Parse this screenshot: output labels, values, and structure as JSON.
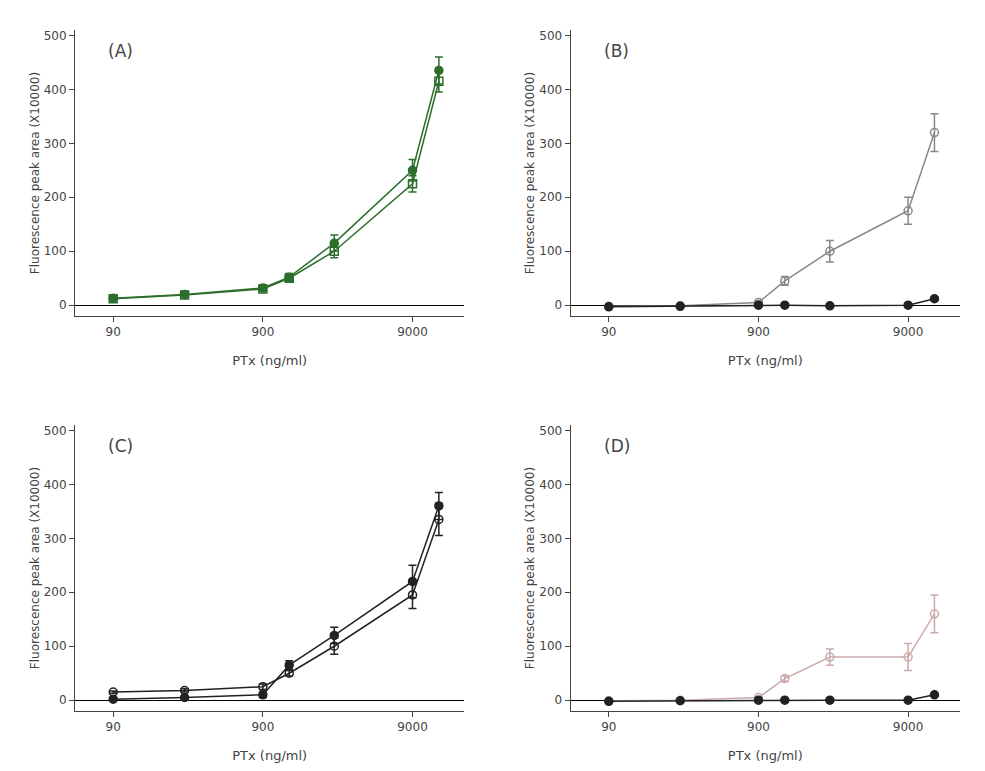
{
  "chart_data": [
    {
      "type": "line",
      "annotations": [
        "(A)"
      ],
      "xlabel": "PTx (ng/ml)",
      "ylabel": "Fluorescence peak area (X10000)",
      "x": [
        90,
        270,
        900,
        1350,
        2700,
        9000,
        13500
      ],
      "log": "x",
      "xlim": [
        50,
        20000
      ],
      "xticks": [
        90,
        900,
        9000
      ],
      "ylim": [
        -20,
        510
      ],
      "yticks": [
        0,
        100,
        200,
        300,
        400,
        500
      ],
      "grid": false,
      "series": [
        {
          "color": "#2d6e2d",
          "marker": "circle",
          "values": [
            13,
            20,
            32,
            52,
            115,
            250,
            435
          ],
          "yerr": [
            3,
            3,
            5,
            7,
            15,
            20,
            25
          ]
        },
        {
          "color": "#2d6e2d",
          "marker": "square-open",
          "values": [
            12,
            19,
            30,
            50,
            100,
            225,
            415
          ],
          "yerr": [
            2,
            3,
            4,
            6,
            12,
            15,
            20
          ]
        }
      ]
    },
    {
      "type": "line",
      "annotations": [
        "(B)"
      ],
      "xlabel": "PTx (ng/ml)",
      "ylabel": "Fluorescence peak area (X10000)",
      "x": [
        90,
        270,
        900,
        1350,
        2700,
        9000,
        13500
      ],
      "log": "x",
      "xlim": [
        50,
        20000
      ],
      "xticks": [
        90,
        900,
        9000
      ],
      "ylim": [
        -20,
        510
      ],
      "yticks": [
        0,
        100,
        200,
        300,
        400,
        500
      ],
      "grid": false,
      "series": [
        {
          "color": "#888888",
          "marker": "circle-open",
          "values": [
            -2,
            -1,
            5,
            45,
            100,
            175,
            320
          ],
          "yerr": [
            1,
            1,
            3,
            8,
            20,
            25,
            35
          ]
        },
        {
          "color": "#222222",
          "marker": "circle",
          "values": [
            -3,
            -2,
            0,
            0,
            -1,
            0,
            12
          ],
          "yerr": [
            1,
            1,
            1,
            1,
            1,
            1,
            3
          ]
        }
      ]
    },
    {
      "type": "line",
      "annotations": [
        "(C)"
      ],
      "xlabel": "PTx (ng/ml)",
      "ylabel": "Fluorescence peak area (X10000)",
      "x": [
        90,
        270,
        900,
        1350,
        2700,
        9000,
        13500
      ],
      "log": "x",
      "xlim": [
        50,
        20000
      ],
      "xticks": [
        90,
        900,
        9000
      ],
      "ylim": [
        -20,
        510
      ],
      "yticks": [
        0,
        100,
        200,
        300,
        400,
        500
      ],
      "grid": false,
      "series": [
        {
          "color": "#222222",
          "marker": "circle",
          "values": [
            2,
            5,
            10,
            65,
            120,
            220,
            360
          ],
          "yerr": [
            2,
            2,
            5,
            8,
            15,
            30,
            25
          ]
        },
        {
          "color": "#222222",
          "marker": "circle-open",
          "values": [
            15,
            18,
            25,
            50,
            100,
            195,
            335
          ],
          "yerr": [
            2,
            3,
            5,
            5,
            15,
            25,
            30
          ]
        }
      ]
    },
    {
      "type": "line",
      "annotations": [
        "(D)"
      ],
      "xlabel": "PTx (ng/ml)",
      "ylabel": "Fluorescence peak area (X10000)",
      "x": [
        90,
        270,
        900,
        1350,
        2700,
        9000,
        13500
      ],
      "log": "x",
      "xlim": [
        50,
        20000
      ],
      "xticks": [
        90,
        900,
        9000
      ],
      "ylim": [
        -20,
        510
      ],
      "yticks": [
        0,
        100,
        200,
        300,
        400,
        500
      ],
      "grid": false,
      "series": [
        {
          "color": "#ccaaaa",
          "marker": "circle-open",
          "values": [
            -1,
            0,
            5,
            40,
            80,
            80,
            160
          ],
          "yerr": [
            1,
            1,
            2,
            5,
            15,
            25,
            35
          ]
        },
        {
          "color": "#222222",
          "marker": "circle",
          "values": [
            -2,
            -1,
            0,
            0,
            0,
            0,
            10
          ],
          "yerr": [
            1,
            1,
            1,
            1,
            1,
            1,
            2
          ]
        }
      ]
    }
  ]
}
